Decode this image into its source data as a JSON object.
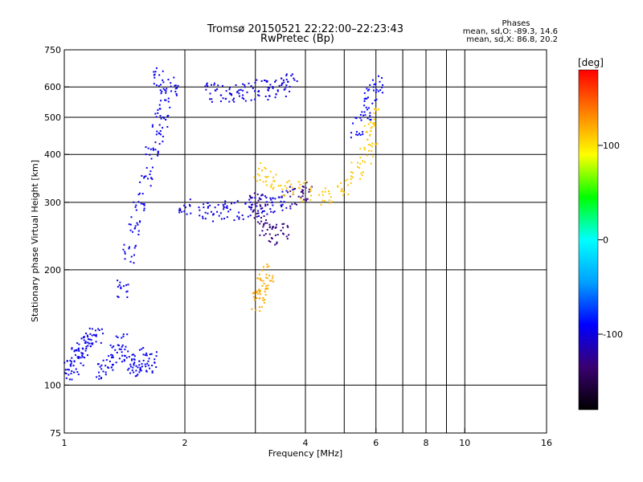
{
  "header": {
    "title_line1": "Tromsø 20150521 22:22:00–22:23:43",
    "title_line2": "RwPretec (Bp)",
    "stats_title": "Phases",
    "stats_o": "mean, sd,O: -89.3, 14.6",
    "stats_x": "mean, sd,X:  86.8, 20.2"
  },
  "chart_data": {
    "type": "scatter",
    "xlabel": "Frequency [MHz]",
    "ylabel": "Stationary phase Virtual Height [km]",
    "x_scale": "log",
    "y_scale": "log",
    "xlim": [
      1,
      16
    ],
    "ylim": [
      75,
      750
    ],
    "x_ticks": [
      1,
      2,
      4,
      6,
      8,
      10,
      16
    ],
    "x_tick_labels": [
      "1",
      "2",
      "4",
      "6",
      "8",
      "10",
      "16"
    ],
    "x_minor_grid": [
      3,
      5,
      7,
      9
    ],
    "y_ticks": [
      75,
      100,
      200,
      300,
      400,
      500,
      600,
      750
    ],
    "y_tick_labels": [
      "75",
      "100",
      "200",
      "300",
      "400",
      "500",
      "600",
      "750"
    ],
    "grid": true,
    "colorbar": {
      "label": "[deg]",
      "range": [
        -180,
        180
      ],
      "ticks": [
        100,
        0,
        -100
      ],
      "tick_labels": [
        "100",
        "0",
        "-100"
      ],
      "colors": [
        "#000000",
        "#3a0070",
        "#0000ff",
        "#00a0ff",
        "#00ffff",
        "#00ff00",
        "#ffff00",
        "#ff8000",
        "#ff0000"
      ]
    },
    "series": [
      {
        "phase_deg": -95,
        "x_range": [
          1.0,
          1.7
        ],
        "height_range": [
          105,
          140
        ],
        "points": [
          [
            1.02,
            108
          ],
          [
            1.05,
            112
          ],
          [
            1.08,
            118
          ],
          [
            1.1,
            122
          ],
          [
            1.13,
            126
          ],
          [
            1.16,
            130
          ],
          [
            1.2,
            134
          ],
          [
            1.25,
            110
          ],
          [
            1.3,
            114
          ],
          [
            1.35,
            120
          ],
          [
            1.4,
            128
          ],
          [
            1.45,
            116
          ],
          [
            1.5,
            112
          ],
          [
            1.55,
            118
          ],
          [
            1.6,
            114
          ],
          [
            1.65,
            116
          ]
        ]
      },
      {
        "phase_deg": -95,
        "x_range": [
          1.3,
          1.95
        ],
        "height_range": [
          150,
          650
        ],
        "points": [
          [
            1.4,
            180
          ],
          [
            1.45,
            220
          ],
          [
            1.5,
            260
          ],
          [
            1.55,
            300
          ],
          [
            1.6,
            350
          ],
          [
            1.65,
            400
          ],
          [
            1.7,
            450
          ],
          [
            1.75,
            500
          ],
          [
            1.8,
            560
          ],
          [
            1.85,
            600
          ],
          [
            1.7,
            640
          ]
        ]
      },
      {
        "phase_deg": -100,
        "x_range": [
          1.95,
          3.6
        ],
        "height_range": [
          275,
          300
        ],
        "points": [
          [
            2.0,
            290
          ],
          [
            2.2,
            286
          ],
          [
            2.4,
            284
          ],
          [
            2.6,
            285
          ],
          [
            2.8,
            287
          ],
          [
            3.0,
            292
          ],
          [
            3.2,
            296
          ],
          [
            3.4,
            300
          ],
          [
            3.6,
            305
          ]
        ]
      },
      {
        "phase_deg": -100,
        "x_range": [
          2.3,
          3.8
        ],
        "height_range": [
          560,
          620
        ],
        "points": [
          [
            2.3,
            580
          ],
          [
            2.5,
            575
          ],
          [
            2.7,
            580
          ],
          [
            2.9,
            585
          ],
          [
            3.1,
            590
          ],
          [
            3.3,
            595
          ],
          [
            3.5,
            600
          ],
          [
            3.7,
            610
          ]
        ]
      },
      {
        "phase_deg": -130,
        "x_range": [
          2.9,
          4.2
        ],
        "height_range": [
          230,
          320
        ],
        "points": [
          [
            3.0,
            300
          ],
          [
            3.1,
            280
          ],
          [
            3.2,
            260
          ],
          [
            3.3,
            245
          ],
          [
            3.5,
            250
          ],
          [
            3.8,
            310
          ],
          [
            4.0,
            320
          ]
        ]
      },
      {
        "phase_deg": 110,
        "x_range": [
          3.0,
          5.9
        ],
        "height_range": [
          310,
          560
        ],
        "points": [
          [
            3.1,
            360
          ],
          [
            3.3,
            340
          ],
          [
            3.6,
            330
          ],
          [
            4.0,
            320
          ],
          [
            4.5,
            310
          ],
          [
            5.0,
            330
          ],
          [
            5.4,
            360
          ],
          [
            5.7,
            400
          ],
          [
            5.85,
            450
          ],
          [
            5.9,
            500
          ]
        ]
      },
      {
        "phase_deg": 120,
        "x_range": [
          3.05,
          3.2
        ],
        "height_range": [
          160,
          200
        ],
        "points": [
          [
            3.05,
            165
          ],
          [
            3.1,
            172
          ],
          [
            3.15,
            185
          ],
          [
            3.2,
            195
          ]
        ]
      },
      {
        "phase_deg": -90,
        "x_range": [
          5.2,
          6.1
        ],
        "height_range": [
          450,
          630
        ],
        "points": [
          [
            5.4,
            470
          ],
          [
            5.6,
            520
          ],
          [
            5.8,
            570
          ],
          [
            6.0,
            610
          ]
        ]
      }
    ]
  }
}
